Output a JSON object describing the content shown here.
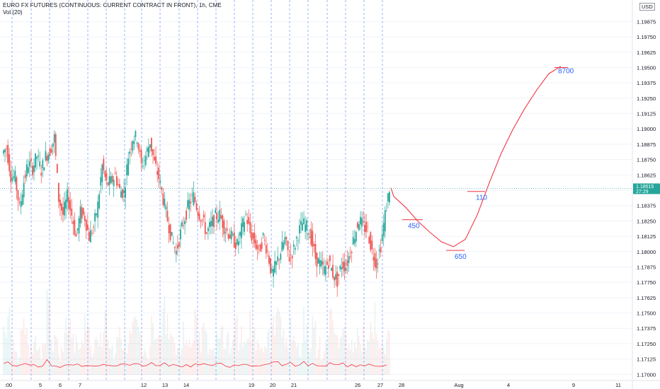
{
  "header": {
    "symbol_line": "EURO FX FUTURES (CONTINUOUS: CURRENT CONTRACT IN FRONT), 1h, CME",
    "indicator": "Vol (20)",
    "currency": "USD"
  },
  "colors": {
    "up": "#26a69a",
    "down": "#ef5350",
    "projection": "#f23645",
    "session_line": "#2962ff",
    "volume_ma": "#f23645",
    "annotation": "#2962ff",
    "price_tag": "#26a69a"
  },
  "chart_data": {
    "type": "candlestick",
    "ylim": [
      1.1695,
      1.2005
    ],
    "y_ticks": [
      "1.17000",
      "1.17125",
      "1.17250",
      "1.17375",
      "1.17500",
      "1.17625",
      "1.17750",
      "1.17875",
      "1.18000",
      "1.18125",
      "1.18250",
      "1.18375",
      "1.18500",
      "1.18625",
      "1.18750",
      "1.18875",
      "1.19000",
      "1.19125",
      "1.19250",
      "1.19375",
      "1.19500",
      "1.19625",
      "1.19750",
      "1.19875"
    ],
    "x_ticks": [
      ":00",
      "5",
      "6",
      "7",
      "12",
      "13",
      "14",
      "19",
      "20",
      "21",
      "26",
      "27",
      "28",
      "Aug",
      "4",
      "9",
      "11"
    ],
    "last_price": "1.18515",
    "last_price_sub": "27:29",
    "path_points": [
      1.188,
      1.1885,
      1.1862,
      1.186,
      1.1835,
      1.1857,
      1.1872,
      1.1868,
      1.1878,
      1.1866,
      1.1878,
      1.1882,
      1.1893,
      1.1843,
      1.183,
      1.1845,
      1.183,
      1.1812,
      1.1832,
      1.1828,
      1.1812,
      1.182,
      1.1838,
      1.187,
      1.1855,
      1.1857,
      1.1862,
      1.185,
      1.1848,
      1.1878,
      1.1893,
      1.1893,
      1.187,
      1.1878,
      1.189,
      1.1872,
      1.186,
      1.1843,
      1.1826,
      1.181,
      1.18,
      1.1815,
      1.1828,
      1.184,
      1.1845,
      1.1833,
      1.1826,
      1.1815,
      1.1822,
      1.1828,
      1.183,
      1.182,
      1.1815,
      1.181,
      1.1805,
      1.1818,
      1.183,
      1.1815,
      1.1808,
      1.18,
      1.1812,
      1.18,
      1.178,
      1.179,
      1.18,
      1.181,
      1.1795,
      1.1802,
      1.1815,
      1.1823,
      1.182,
      1.1811,
      1.1795,
      1.179,
      1.1785,
      1.1792,
      1.1782,
      1.1776,
      1.179,
      1.1788,
      1.18,
      1.1814,
      1.1826,
      1.182,
      1.1817,
      1.18,
      1.179,
      1.1805,
      1.183,
      1.1852
    ],
    "volume": [
      0.5,
      0.8,
      0.4,
      0.3,
      0.6,
      0.7,
      0.4,
      0.5,
      0.3,
      0.6,
      0.9,
      0.5,
      0.4,
      0.3,
      0.6,
      0.8,
      0.5,
      0.4,
      0.7,
      0.5,
      0.3,
      0.6,
      0.5,
      0.8,
      0.4,
      0.3,
      0.6,
      0.5,
      0.4,
      0.7,
      0.9,
      0.5,
      0.4,
      0.3,
      0.6,
      0.5,
      0.7,
      0.8,
      0.5,
      0.4,
      0.3,
      0.6,
      0.5,
      0.4,
      0.7,
      0.5,
      0.6,
      0.4,
      0.3,
      0.5,
      0.6,
      0.5,
      0.4,
      0.7,
      0.5,
      0.6,
      0.8,
      0.5,
      0.4,
      0.3,
      0.6,
      0.5,
      0.9,
      0.7,
      0.5,
      0.4,
      0.6,
      0.5,
      0.4,
      0.7,
      0.5,
      0.6,
      0.4,
      0.3,
      0.5,
      0.7,
      0.5,
      0.4,
      0.6,
      0.5,
      0.4,
      0.6,
      0.5,
      0.4,
      0.7,
      0.8,
      0.5,
      0.4,
      0.6,
      0.7
    ],
    "projection_path": [
      1.1845,
      1.1836,
      1.1825,
      1.1816,
      1.1808,
      1.1804,
      1.181,
      1.183,
      1.1856,
      1.188,
      1.19,
      1.1917,
      1.1932,
      1.1945,
      1.1951
    ],
    "annotations": [
      {
        "label": "450",
        "price": 1.1826
      },
      {
        "label": "650",
        "price": 1.1801
      },
      {
        "label": "110",
        "price": 1.1849
      },
      {
        "label": "8700",
        "price": 1.195
      }
    ]
  }
}
